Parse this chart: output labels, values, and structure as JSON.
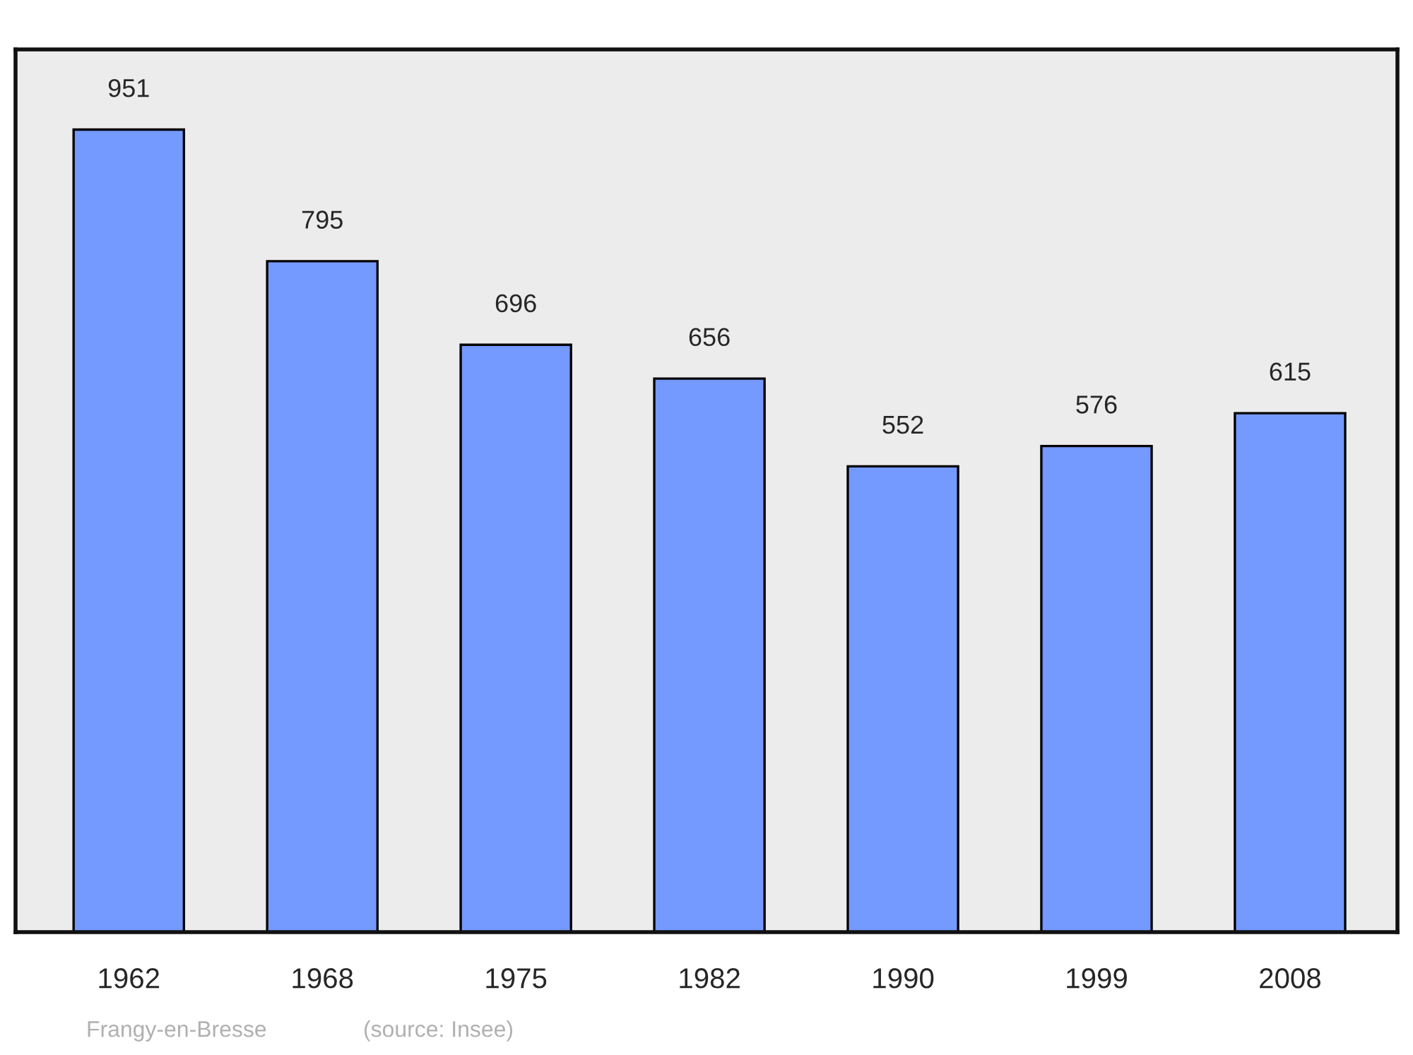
{
  "chart_data": {
    "type": "bar",
    "categories": [
      "1962",
      "1968",
      "1975",
      "1982",
      "1990",
      "1999",
      "2008"
    ],
    "values": [
      951,
      795,
      696,
      656,
      552,
      576,
      615
    ],
    "color": "#7499ff",
    "data_labels": true,
    "ylim": [
      0,
      1046
    ],
    "grid": false,
    "legend": false,
    "tick_labels": "x",
    "annotations": [
      "Frangy-en-Bresse",
      "(source: Insee)"
    ]
  }
}
